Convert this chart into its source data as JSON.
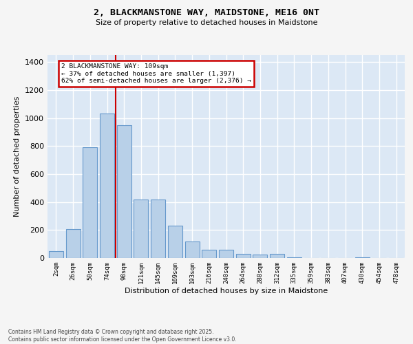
{
  "title_line1": "2, BLACKMANSTONE WAY, MAIDSTONE, ME16 0NT",
  "title_line2": "Size of property relative to detached houses in Maidstone",
  "xlabel": "Distribution of detached houses by size in Maidstone",
  "ylabel": "Number of detached properties",
  "categories": [
    "2sqm",
    "26sqm",
    "50sqm",
    "74sqm",
    "98sqm",
    "121sqm",
    "145sqm",
    "169sqm",
    "193sqm",
    "216sqm",
    "240sqm",
    "264sqm",
    "288sqm",
    "312sqm",
    "335sqm",
    "359sqm",
    "383sqm",
    "407sqm",
    "430sqm",
    "454sqm",
    "478sqm"
  ],
  "values": [
    50,
    205,
    790,
    1030,
    950,
    420,
    420,
    230,
    120,
    60,
    60,
    30,
    25,
    28,
    5,
    0,
    0,
    0,
    5,
    0,
    0
  ],
  "bar_color": "#b8d0e8",
  "bar_edge_color": "#6699cc",
  "plot_bg_color": "#dce8f5",
  "fig_bg_color": "#f5f5f5",
  "grid_color": "#ffffff",
  "vline_color": "#cc0000",
  "vline_x": 3.5,
  "annotation_line1": "2 BLACKMANSTONE WAY: 109sqm",
  "annotation_line2": "← 37% of detached houses are smaller (1,397)",
  "annotation_line3": "62% of semi-detached houses are larger (2,376) →",
  "annotation_box_edgecolor": "#cc0000",
  "footnote_line1": "Contains HM Land Registry data © Crown copyright and database right 2025.",
  "footnote_line2": "Contains public sector information licensed under the Open Government Licence v3.0.",
  "ylim": [
    0,
    1450
  ],
  "yticks": [
    0,
    200,
    400,
    600,
    800,
    1000,
    1200,
    1400
  ]
}
